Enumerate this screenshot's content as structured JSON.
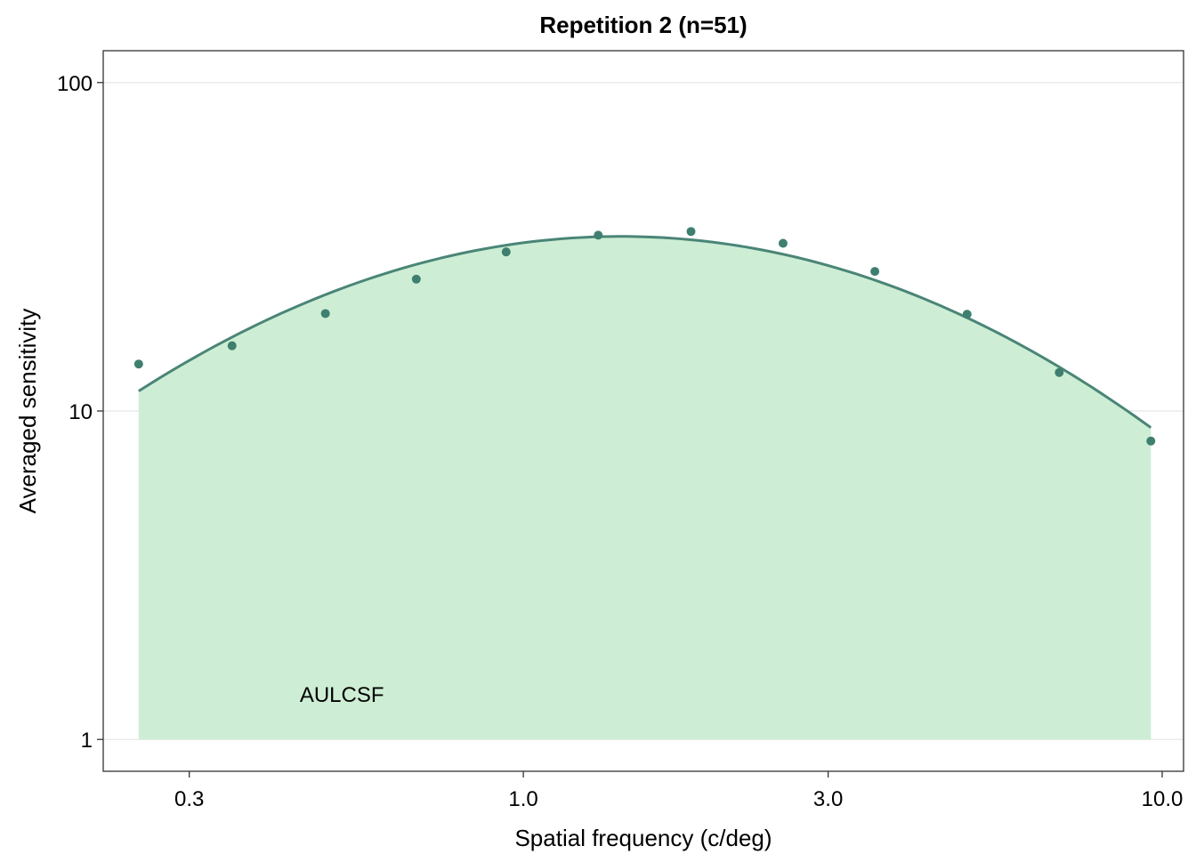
{
  "chart_data": {
    "type": "scatter",
    "title": "Repetition 2 (n=51)",
    "xlabel": "Spatial frequency (c/deg)",
    "ylabel": "Averaged sensitivity",
    "x_scale": "log",
    "y_scale": "log",
    "xlim": [
      0.22,
      10.8
    ],
    "ylim": [
      0.8,
      125
    ],
    "x_ticks": [
      {
        "value": 0.3,
        "label": "0.3"
      },
      {
        "value": 1.0,
        "label": "1.0"
      },
      {
        "value": 3.0,
        "label": "3.0"
      },
      {
        "value": 10.0,
        "label": "10.0"
      }
    ],
    "y_ticks": [
      {
        "value": 1,
        "label": "1"
      },
      {
        "value": 10,
        "label": "10"
      },
      {
        "value": 100,
        "label": "100"
      }
    ],
    "grid": "horizontal-major",
    "points": {
      "x": [
        0.25,
        0.35,
        0.49,
        0.68,
        0.94,
        1.31,
        1.83,
        2.55,
        3.55,
        4.95,
        6.9,
        9.6
      ],
      "y": [
        13.9,
        15.8,
        19.8,
        25.2,
        30.5,
        34.3,
        35.2,
        32.4,
        26.6,
        19.7,
        13.1,
        8.1
      ]
    },
    "fit_curve": {
      "x_min": 0.25,
      "x_max": 9.6,
      "peak_x": 1.42,
      "peak_y": 34.0,
      "left_y": 11.5,
      "right_y": 8.9
    },
    "area_label": "AULCSF",
    "area_label_position": {
      "x": 0.52,
      "y": 1.3
    },
    "colors": {
      "points": "#3f7f6f",
      "curve": "#4a8577",
      "area": "#cdeed4",
      "grid": "#e6e6e6",
      "panel_border": "#333333"
    }
  }
}
